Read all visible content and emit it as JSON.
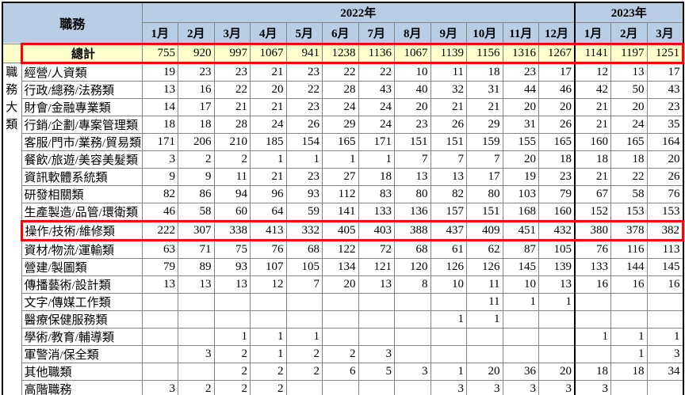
{
  "table": {
    "corner_label": "職務",
    "side_label": [
      "職",
      "務",
      "大",
      "類"
    ],
    "years": [
      {
        "label": "2022年",
        "span": 12
      },
      {
        "label": "2023年",
        "span": 3
      }
    ],
    "months": [
      "1月",
      "2月",
      "3月",
      "4月",
      "5月",
      "6月",
      "7月",
      "8月",
      "9月",
      "10月",
      "11月",
      "12月",
      "1月",
      "2月",
      "3月"
    ],
    "total_row": {
      "label": "總計",
      "values": [
        755,
        920,
        997,
        1067,
        941,
        1238,
        1136,
        1067,
        1139,
        1156,
        1316,
        1267,
        1141,
        1197,
        1251
      ]
    },
    "rows": [
      {
        "label": "經營/人資類",
        "values": [
          19,
          23,
          23,
          21,
          23,
          22,
          22,
          10,
          11,
          18,
          23,
          17,
          12,
          13,
          17
        ]
      },
      {
        "label": "行政/總務/法務類",
        "values": [
          13,
          16,
          22,
          20,
          22,
          28,
          43,
          40,
          32,
          31,
          44,
          46,
          42,
          50,
          43
        ]
      },
      {
        "label": "財會/金融專業類",
        "values": [
          14,
          17,
          21,
          21,
          23,
          24,
          24,
          20,
          21,
          21,
          20,
          20,
          21,
          20,
          23
        ]
      },
      {
        "label": "行銷/企劃/專案管理類",
        "values": [
          18,
          18,
          28,
          24,
          26,
          29,
          24,
          23,
          26,
          29,
          31,
          26,
          21,
          24,
          35
        ]
      },
      {
        "label": "客服/門市/業務/貿易類",
        "values": [
          171,
          206,
          210,
          185,
          154,
          165,
          171,
          151,
          151,
          159,
          155,
          165,
          160,
          165,
          164
        ]
      },
      {
        "label": "餐飲/旅遊/美容美髮類",
        "values": [
          3,
          2,
          2,
          1,
          1,
          1,
          1,
          7,
          7,
          7,
          20,
          18,
          18,
          18,
          20
        ]
      },
      {
        "label": "資訊軟體系統類",
        "values": [
          9,
          9,
          11,
          21,
          23,
          27,
          18,
          13,
          13,
          17,
          19,
          23,
          21,
          22,
          26
        ]
      },
      {
        "label": "研發相關類",
        "values": [
          82,
          86,
          94,
          96,
          93,
          112,
          83,
          80,
          82,
          80,
          103,
          79,
          67,
          58,
          76
        ]
      },
      {
        "label": "生產製造/品管/環衛類",
        "values": [
          46,
          58,
          60,
          64,
          59,
          141,
          133,
          136,
          157,
          151,
          168,
          160,
          152,
          153,
          153
        ]
      },
      {
        "label": "操作/技術/維修類",
        "values": [
          222,
          307,
          338,
          413,
          332,
          405,
          403,
          388,
          437,
          409,
          451,
          432,
          380,
          378,
          382
        ],
        "highlight": true
      },
      {
        "label": "資材/物流/運輸類",
        "values": [
          63,
          71,
          75,
          76,
          68,
          122,
          72,
          68,
          61,
          62,
          87,
          105,
          76,
          116,
          113
        ]
      },
      {
        "label": "營建/製圖類",
        "values": [
          79,
          89,
          93,
          107,
          105,
          134,
          121,
          120,
          126,
          126,
          145,
          139,
          133,
          144,
          145
        ]
      },
      {
        "label": "傳播藝術/設計類",
        "values": [
          13,
          13,
          13,
          12,
          7,
          20,
          13,
          8,
          10,
          11,
          10,
          13,
          16,
          16,
          16
        ]
      },
      {
        "label": "文字/傳媒工作類",
        "values": [
          "",
          "",
          "",
          "",
          "",
          "",
          "",
          "",
          "",
          11,
          1,
          1,
          "",
          "",
          ""
        ]
      },
      {
        "label": "醫療保健服務類",
        "values": [
          "",
          "",
          "",
          "",
          "",
          "",
          "",
          "",
          1,
          1,
          "",
          "",
          "",
          "",
          ""
        ]
      },
      {
        "label": "學術/教育/輔導類",
        "values": [
          "",
          "",
          1,
          1,
          1,
          "",
          "",
          "",
          "",
          "",
          "",
          "",
          1,
          1,
          1
        ]
      },
      {
        "label": "軍警消/保全類",
        "values": [
          "",
          3,
          2,
          1,
          2,
          2,
          3,
          "",
          "",
          "",
          "",
          "",
          "",
          1,
          3
        ]
      },
      {
        "label": "其他職類",
        "values": [
          "",
          "",
          2,
          2,
          2,
          6,
          5,
          3,
          1,
          20,
          36,
          20,
          18,
          18,
          34
        ]
      },
      {
        "label": "高階職務",
        "values": [
          3,
          2,
          2,
          2,
          "",
          "",
          "",
          "",
          3,
          3,
          3,
          3,
          3,
          "",
          ""
        ]
      }
    ],
    "colors": {
      "header_blue": "#B9CDE5",
      "total_yellow": "#FFFFCC",
      "highlight_red": "#FF0000",
      "grid_grey": "#848484"
    }
  }
}
